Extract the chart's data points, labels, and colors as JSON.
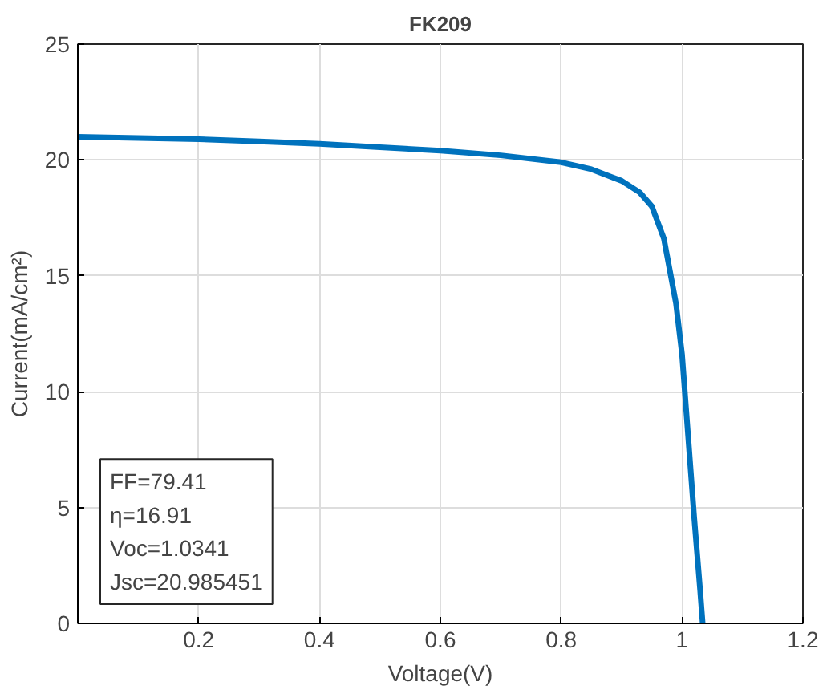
{
  "chart_data": {
    "type": "line",
    "title": "FK209",
    "xlabel": "Voltage(V)",
    "ylabel": "Current(mA/cm²)",
    "x": [
      0,
      0.1,
      0.2,
      0.3,
      0.4,
      0.5,
      0.6,
      0.7,
      0.8,
      0.85,
      0.9,
      0.93,
      0.95,
      0.97,
      0.99,
      1.0,
      1.01,
      1.02,
      1.03,
      1.0341
    ],
    "series": [
      {
        "color": "#0072bd",
        "values": [
          21.0,
          20.95,
          20.9,
          20.8,
          20.7,
          20.55,
          20.4,
          20.2,
          19.9,
          19.6,
          19.1,
          18.6,
          18.0,
          16.6,
          13.8,
          11.6,
          8.1,
          4.6,
          1.4,
          0
        ]
      }
    ],
    "xlim": [
      0,
      1.2
    ],
    "xticks": [
      0.2,
      0.4,
      0.6,
      0.8,
      1,
      1.2
    ],
    "ylim": [
      0,
      25
    ],
    "yticks": [
      0,
      5,
      10,
      15,
      20,
      25
    ],
    "grid": true,
    "line_style": "solid",
    "marker": "none",
    "annotations": [
      "FF=79.41",
      "η=16.91",
      "Voc=1.0341",
      "Jsc=20.985451"
    ]
  }
}
